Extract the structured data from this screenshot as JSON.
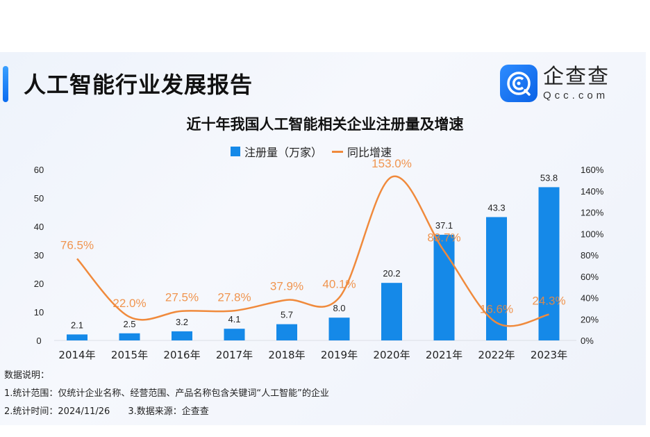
{
  "header": {
    "report_title": "人工智能行业发展报告",
    "logo_cn": "企查查",
    "logo_en": "Qcc.com"
  },
  "colors": {
    "bar": "#1589e8",
    "line": "#f08a3c"
  },
  "chart_data": {
    "type": "bar+line",
    "title": "近十年我国人工智能相关企业注册量及增速",
    "categories": [
      "2014年",
      "2015年",
      "2016年",
      "2017年",
      "2018年",
      "2019年",
      "2020年",
      "2021年",
      "2022年",
      "2023年"
    ],
    "series": [
      {
        "name": "注册量（万家）",
        "type": "bar",
        "axis": "left",
        "values": [
          2.1,
          2.5,
          3.2,
          4.1,
          5.7,
          8.0,
          20.2,
          37.1,
          43.3,
          53.8
        ],
        "labels": [
          "2.1",
          "2.5",
          "3.2",
          "4.1",
          "5.7",
          "8.0",
          "20.2",
          "37.1",
          "43.3",
          "53.8"
        ]
      },
      {
        "name": "同比增速",
        "type": "line",
        "axis": "right",
        "values": [
          76.5,
          22.0,
          27.5,
          27.8,
          37.9,
          40.1,
          153.0,
          83.7,
          16.6,
          24.3
        ],
        "labels": [
          "76.5%",
          "22.0%",
          "27.5%",
          "27.8%",
          "37.9%",
          "40.1%",
          "153.0%",
          "83.7%",
          "16.6%",
          "24.3%"
        ]
      }
    ],
    "y_left": {
      "range": [
        0,
        60
      ],
      "ticks": [
        "0",
        "10",
        "20",
        "30",
        "40",
        "50",
        "60"
      ]
    },
    "y_right": {
      "range": [
        0,
        160
      ],
      "ticks": [
        "0%",
        "20%",
        "40%",
        "60%",
        "80%",
        "100%",
        "120%",
        "140%",
        "160%"
      ]
    },
    "legend": "top-center",
    "grid": false
  },
  "notes": {
    "heading": "数据说明：",
    "line1": "1.统计范围：仅统计企业名称、经营范围、产品名称包含关键词“人工智能”的企业",
    "line2a": "2.统计时间：2024/11/26",
    "line2b": "3.数据来源：企查查"
  }
}
